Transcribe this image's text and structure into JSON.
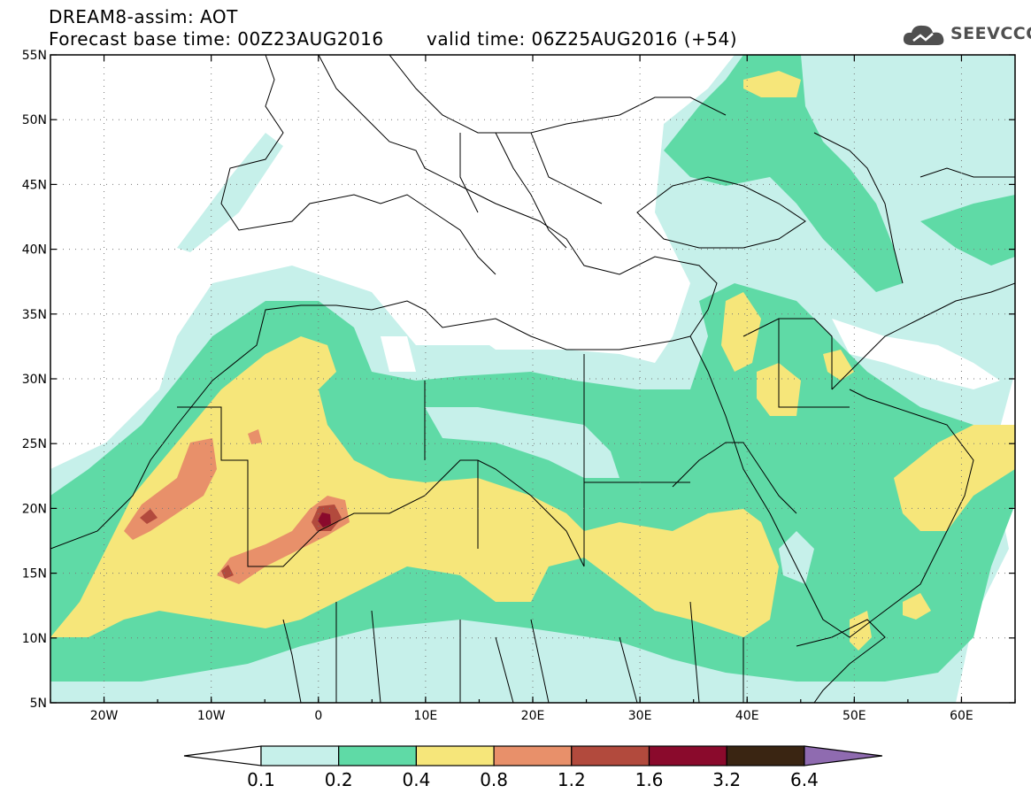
{
  "header": {
    "title": "DREAM8-assim: AOT",
    "base_time": "Forecast base time: 00Z23AUG2016",
    "valid_time": "valid time: 06Z25AUG2016 (+54)"
  },
  "logo": {
    "text": "SEEVCCC",
    "icon": "cloud-icon"
  },
  "map": {
    "lon_labels": [
      "20W",
      "10W",
      "0",
      "10E",
      "20E",
      "30E",
      "40E",
      "50E",
      "60E"
    ],
    "lat_labels": [
      "55N",
      "50N",
      "45N",
      "40N",
      "35N",
      "30N",
      "25N",
      "20N",
      "15N",
      "10N",
      "5N"
    ],
    "lon_range": [
      -25,
      65
    ],
    "lat_range": [
      5,
      55
    ],
    "grid": "dotted"
  },
  "colorbar": {
    "labels": [
      "0.1",
      "0.2",
      "0.4",
      "0.8",
      "1.2",
      "1.6",
      "3.2",
      "6.4"
    ],
    "colors": [
      "#ffffff",
      "#c6f0ea",
      "#5fdaa6",
      "#f6e67a",
      "#e8906a",
      "#b24a3d",
      "#8a0a2c",
      "#3a2512",
      "#8f6bb0"
    ]
  }
}
